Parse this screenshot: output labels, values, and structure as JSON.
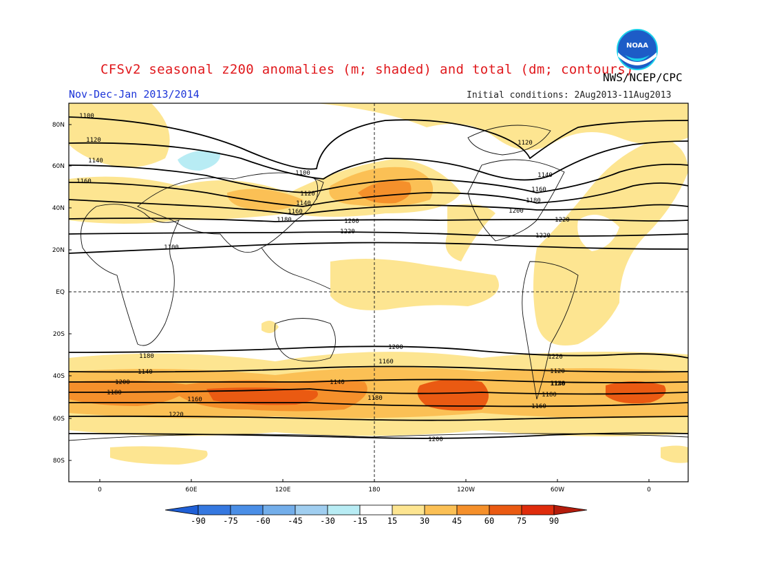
{
  "header": {
    "title": "CFSv2 seasonal z200 anomalies (m; shaded) and total (dm; contours)",
    "period": "Nov-Dec-Jan 2013/2014",
    "initial_conditions": "Initial conditions: 2Aug2013-11Aug2013",
    "agency": "NWS/NCEP/CPC",
    "logo_text": "NOAA"
  },
  "map": {
    "lat_labels": [
      "80N",
      "60N",
      "40N",
      "20N",
      "EQ",
      "20S",
      "40S",
      "60S",
      "80S"
    ],
    "lon_labels": [
      "0",
      "60E",
      "120E",
      "180",
      "120W",
      "60W",
      "0"
    ]
  },
  "contours": {
    "units": "dm",
    "labels": [
      "1100",
      "1120",
      "1140",
      "1160",
      "1100",
      "1120",
      "1140",
      "1160",
      "1180",
      "1200",
      "1220",
      "1100",
      "1120",
      "1140",
      "1160",
      "1180",
      "1200",
      "1220",
      "1220",
      "1200",
      "1180",
      "1160",
      "1140",
      "1120",
      "1220",
      "1200",
      "1180",
      "1160",
      "1140",
      "1120",
      "1180",
      "1220",
      "1200",
      "1180",
      "1160",
      "1140"
    ]
  },
  "colorbar": {
    "labels": [
      "-90",
      "-75",
      "-60",
      "-45",
      "-30",
      "-15",
      "15",
      "30",
      "45",
      "60",
      "75",
      "90"
    ],
    "colors": [
      "#1f5fd6",
      "#3578e0",
      "#4a8ee6",
      "#73aeea",
      "#a0cef0",
      "#b8ecf4",
      "#ffffff",
      "#fde591",
      "#fbc055",
      "#f5902b",
      "#ea5a12",
      "#df2c0c",
      "#b41c0c"
    ]
  }
}
